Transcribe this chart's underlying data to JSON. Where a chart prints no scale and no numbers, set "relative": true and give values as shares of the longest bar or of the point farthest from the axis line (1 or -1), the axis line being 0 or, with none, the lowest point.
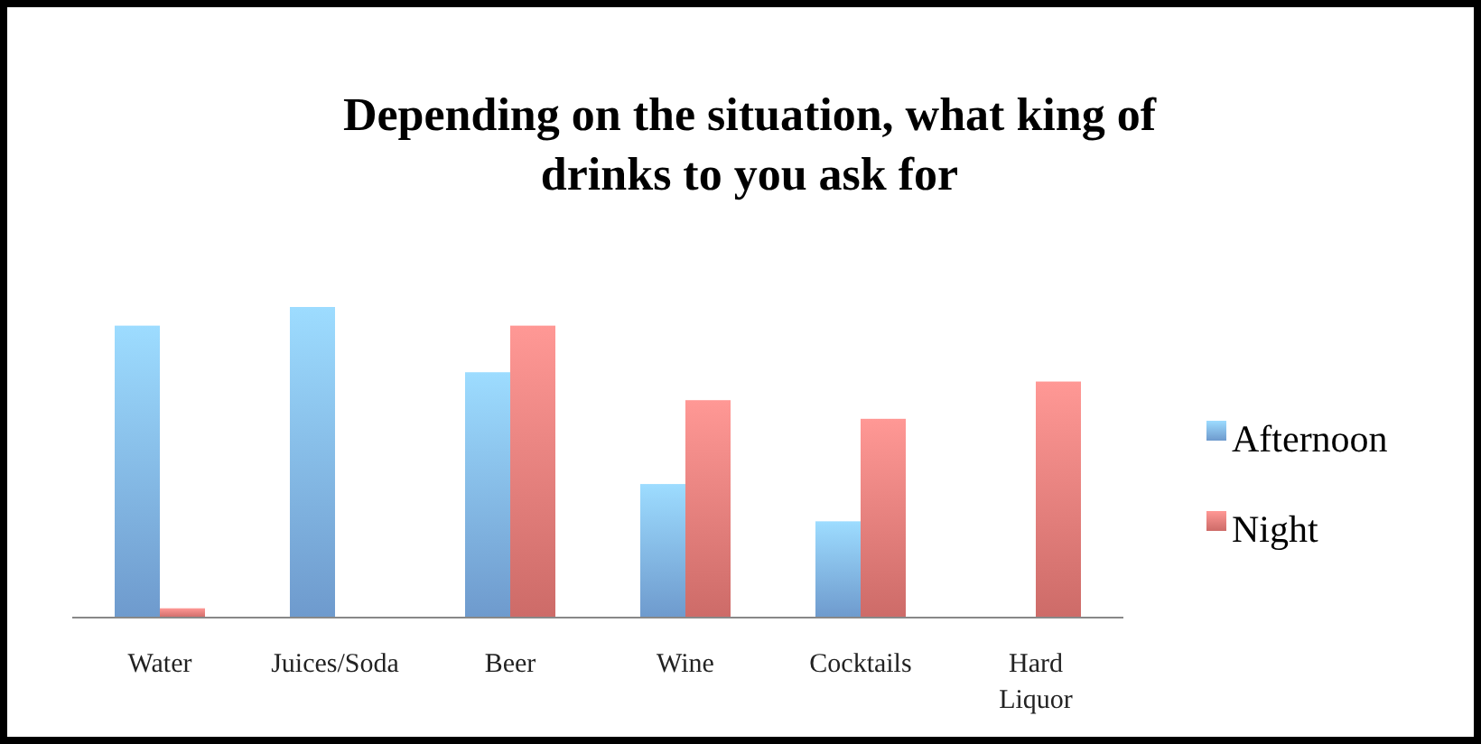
{
  "chart_data": {
    "type": "bar",
    "title": "Depending on the situation, what king of drinks to you ask for",
    "relative": true,
    "categories": [
      "Water",
      "Juices/Soda",
      "Beer",
      "Wine",
      "Cocktails",
      "Hard Liquor"
    ],
    "series": [
      {
        "name": "Afternoon",
        "color": "#7fb2ec",
        "values": [
          0.94,
          1,
          0.79,
          0.43,
          0.31,
          null
        ]
      },
      {
        "name": "Night",
        "color": "#ec7b78",
        "values": [
          0.03,
          null,
          0.94,
          0.7,
          0.64,
          0.76
        ]
      }
    ],
    "legend": "right",
    "grid": false
  }
}
